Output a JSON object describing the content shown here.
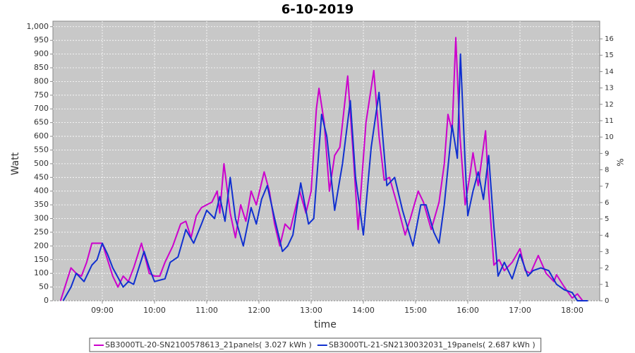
{
  "chart_data": {
    "type": "line",
    "title": "6-10-2019",
    "xlabel": "time",
    "ylabel": "Watt",
    "y2label": "%",
    "xlim": [
      8.054,
      18.527
    ],
    "ylim": [
      0,
      1020
    ],
    "y2lim": [
      0,
      17.08
    ],
    "xticks": [
      {
        "value": 9,
        "label": "09:00"
      },
      {
        "value": 10,
        "label": "10:00"
      },
      {
        "value": 11,
        "label": "11:00"
      },
      {
        "value": 12,
        "label": "12:00"
      },
      {
        "value": 13,
        "label": "13:00"
      },
      {
        "value": 14,
        "label": "14:00"
      },
      {
        "value": 15,
        "label": "15:00"
      },
      {
        "value": 16,
        "label": "16:00"
      },
      {
        "value": 17,
        "label": "17:00"
      },
      {
        "value": 18,
        "label": "18:00"
      }
    ],
    "yticks": [
      0,
      50,
      100,
      150,
      200,
      250,
      300,
      350,
      400,
      450,
      500,
      550,
      600,
      650,
      700,
      750,
      800,
      850,
      900,
      950,
      {
        "value": 1000,
        "label": "1,000"
      }
    ],
    "y2ticks": [
      0,
      1,
      2,
      3,
      4,
      5,
      6,
      7,
      8,
      9,
      10,
      11,
      12,
      13,
      14,
      15,
      16
    ],
    "grid": true,
    "series": [
      {
        "name": "SB3000TL-20-SN2100578613_21panels( 3.027 kWh )",
        "color": "#cc00cc",
        "x": [
          8.2,
          8.3,
          8.4,
          8.5,
          8.6,
          8.7,
          8.8,
          8.9,
          9.0,
          9.1,
          9.2,
          9.3,
          9.4,
          9.5,
          9.6,
          9.75,
          9.9,
          10.0,
          10.1,
          10.2,
          10.35,
          10.5,
          10.6,
          10.7,
          10.8,
          10.9,
          11.0,
          11.1,
          11.2,
          11.25,
          11.33,
          11.45,
          11.55,
          11.65,
          11.75,
          11.85,
          11.95,
          12.1,
          12.2,
          12.3,
          12.4,
          12.5,
          12.6,
          12.78,
          12.9,
          13.0,
          13.1,
          13.15,
          13.25,
          13.35,
          13.45,
          13.55,
          13.7,
          13.8,
          13.9,
          14.05,
          14.2,
          14.3,
          14.4,
          14.5,
          14.65,
          14.8,
          14.9,
          15.05,
          15.15,
          15.3,
          15.45,
          15.55,
          15.62,
          15.7,
          15.77,
          15.85,
          15.95,
          16.05,
          16.1,
          16.2,
          16.34,
          16.4,
          16.5,
          16.6,
          16.7,
          16.85,
          17.0,
          17.1,
          17.2,
          17.35,
          17.5,
          17.65,
          17.7,
          17.85,
          18.0,
          18.1,
          18.2
        ],
        "values": [
          0,
          60,
          120,
          100,
          90,
          140,
          210,
          210,
          210,
          150,
          90,
          50,
          90,
          70,
          120,
          210,
          100,
          90,
          90,
          140,
          200,
          280,
          290,
          230,
          310,
          340,
          350,
          360,
          400,
          320,
          500,
          320,
          230,
          350,
          290,
          400,
          350,
          470,
          400,
          280,
          200,
          280,
          260,
          400,
          320,
          400,
          700,
          775,
          650,
          400,
          530,
          560,
          820,
          550,
          260,
          650,
          840,
          600,
          440,
          450,
          350,
          240,
          300,
          400,
          360,
          260,
          360,
          500,
          680,
          620,
          960,
          600,
          350,
          470,
          540,
          420,
          620,
          400,
          130,
          150,
          110,
          140,
          190,
          110,
          100,
          165,
          100,
          70,
          95,
          50,
          10,
          25,
          0
        ]
      },
      {
        "name": "SB3000TL-21-SN2130032031_19panels( 2.687 kWh )",
        "color": "#1030d0",
        "x": [
          8.25,
          8.4,
          8.5,
          8.65,
          8.8,
          8.9,
          9.0,
          9.1,
          9.2,
          9.4,
          9.5,
          9.6,
          9.8,
          9.9,
          10.0,
          10.2,
          10.3,
          10.45,
          10.6,
          10.75,
          10.9,
          11.0,
          11.15,
          11.25,
          11.35,
          11.45,
          11.55,
          11.7,
          11.85,
          11.95,
          12.05,
          12.16,
          12.3,
          12.45,
          12.55,
          12.65,
          12.8,
          12.95,
          13.05,
          13.2,
          13.3,
          13.45,
          13.6,
          13.75,
          13.85,
          14.0,
          14.15,
          14.3,
          14.45,
          14.6,
          14.75,
          14.95,
          15.1,
          15.2,
          15.35,
          15.45,
          15.55,
          15.7,
          15.8,
          15.86,
          15.95,
          16.0,
          16.1,
          16.2,
          16.3,
          16.4,
          16.5,
          16.58,
          16.7,
          16.85,
          17.0,
          17.15,
          17.25,
          17.4,
          17.55,
          17.7,
          17.85,
          18.0,
          18.1,
          18.3
        ],
        "values": [
          0,
          50,
          100,
          70,
          130,
          150,
          210,
          170,
          120,
          50,
          70,
          60,
          180,
          120,
          70,
          80,
          140,
          160,
          260,
          210,
          280,
          330,
          300,
          380,
          290,
          450,
          300,
          200,
          340,
          280,
          370,
          420,
          300,
          180,
          200,
          240,
          430,
          280,
          300,
          680,
          600,
          330,
          500,
          730,
          450,
          240,
          560,
          760,
          420,
          450,
          330,
          200,
          350,
          350,
          250,
          210,
          350,
          640,
          520,
          900,
          500,
          310,
          400,
          470,
          370,
          530,
          270,
          90,
          140,
          80,
          170,
          90,
          110,
          120,
          110,
          60,
          40,
          30,
          0,
          0
        ]
      }
    ]
  }
}
